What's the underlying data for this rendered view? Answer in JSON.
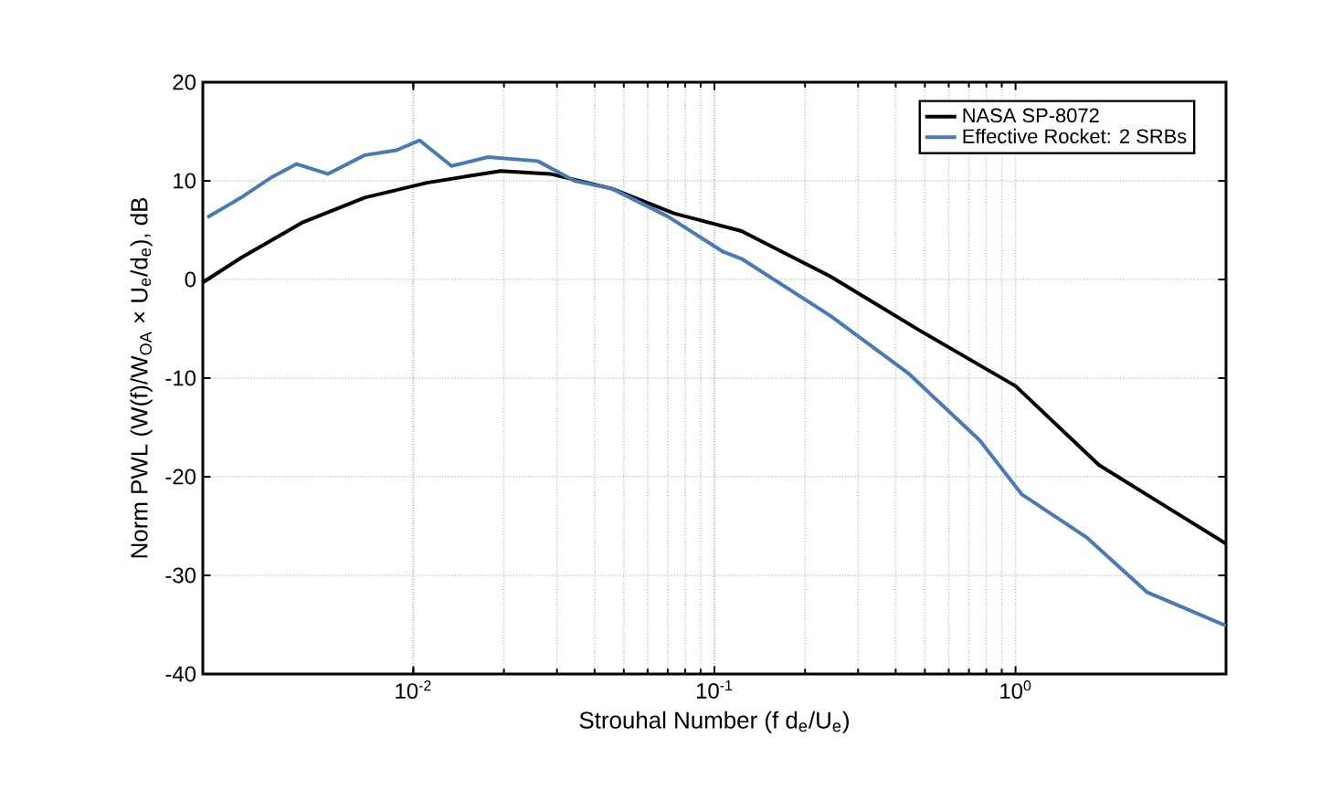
{
  "chart_data": {
    "type": "line",
    "xlabel": "Strouhal Number (f d$_{e}$/U$_{e}$)",
    "ylabel": "Norm PWL (W(f)/W$_{OA}$ × U$_{e}$/d$_{e}$), dB",
    "log": "x",
    "grid": true,
    "legend": "top right",
    "xlim": [
      0.002,
      5
    ],
    "ylim": [
      -40,
      20
    ],
    "xticks": [
      {
        "value": 0.01,
        "label": "10$^{-2}$"
      },
      {
        "value": 0.1,
        "label": "10$^{-1}$"
      },
      {
        "value": 1,
        "label": "10$^{0}$"
      }
    ],
    "yticks": [
      -40,
      -30,
      -20,
      -10,
      0,
      10,
      20
    ],
    "series": [
      {
        "name": "NASA SP-8072",
        "color": "#000000",
        "x": [
          0.002,
          0.00268,
          0.0043,
          0.0069,
          0.0111,
          0.0195,
          0.0285,
          0.0457,
          0.0734,
          0.123,
          0.243,
          0.482,
          1.0,
          1.89,
          5
        ],
        "values": [
          -0.3,
          2.2,
          5.8,
          8.3,
          9.8,
          11.0,
          10.7,
          9.2,
          6.7,
          4.9,
          0.3,
          -5.2,
          -10.8,
          -18.8,
          -26.8
        ]
      },
      {
        "name": "Effective Rocket: 2 SRBs",
        "color": "#4a7ab5",
        "x": [
          0.00207,
          0.00268,
          0.0034,
          0.0041,
          0.0052,
          0.0069,
          0.0088,
          0.0105,
          0.0134,
          0.0177,
          0.0259,
          0.0343,
          0.0457,
          0.0699,
          0.107,
          0.123,
          0.243,
          0.44,
          0.76,
          1.05,
          1.73,
          2.73,
          5
        ],
        "values": [
          6.3,
          8.3,
          10.4,
          11.7,
          10.7,
          12.6,
          13.1,
          14.1,
          11.5,
          12.4,
          12.0,
          10.0,
          9.2,
          6.4,
          2.8,
          2.1,
          -3.7,
          -9.5,
          -16.3,
          -21.8,
          -26.2,
          -31.7,
          -35.1
        ]
      }
    ]
  }
}
